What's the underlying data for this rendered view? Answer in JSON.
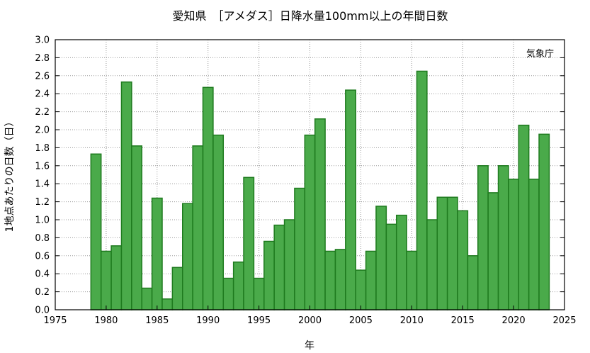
{
  "chart_data": {
    "type": "bar",
    "title": "愛知県　［アメダス］日降水量100mm以上の年間日数",
    "xlabel": "年",
    "ylabel": "1地点あたりの日数（日）",
    "credit": "気象庁",
    "xlim": [
      1975,
      2025
    ],
    "ylim": [
      0.0,
      3.0
    ],
    "xticks": [
      "1975",
      "1980",
      "1985",
      "1990",
      "1995",
      "2000",
      "2005",
      "2010",
      "2015",
      "2020",
      "2025"
    ],
    "yticks": [
      "0.0",
      "0.2",
      "0.4",
      "0.6",
      "0.8",
      "1.0",
      "1.2",
      "1.4",
      "1.6",
      "1.8",
      "2.0",
      "2.2",
      "2.4",
      "2.6",
      "2.8",
      "3.0"
    ],
    "grid": true,
    "x": [
      1979,
      1980,
      1981,
      1982,
      1983,
      1984,
      1985,
      1986,
      1987,
      1988,
      1989,
      1990,
      1991,
      1992,
      1993,
      1994,
      1995,
      1996,
      1997,
      1998,
      1999,
      2000,
      2001,
      2002,
      2003,
      2004,
      2005,
      2006,
      2007,
      2008,
      2009,
      2010,
      2011,
      2012,
      2013,
      2014,
      2015,
      2016,
      2017,
      2018,
      2019,
      2020,
      2021,
      2022,
      2023
    ],
    "values": [
      1.73,
      0.65,
      0.71,
      2.53,
      1.82,
      0.24,
      1.24,
      0.12,
      0.47,
      1.18,
      1.82,
      2.47,
      1.94,
      0.35,
      0.53,
      1.47,
      0.35,
      0.76,
      0.94,
      1.0,
      1.35,
      1.94,
      2.12,
      0.65,
      0.67,
      2.44,
      0.44,
      0.65,
      1.15,
      0.95,
      1.05,
      0.65,
      2.65,
      1.0,
      1.25,
      1.25,
      1.1,
      0.6,
      1.6,
      1.3,
      1.6,
      1.45,
      2.05,
      1.45,
      1.95
    ],
    "colors": {
      "bar_fill": "#4aaa4a",
      "bar_edge": "#1e7a1e"
    }
  }
}
